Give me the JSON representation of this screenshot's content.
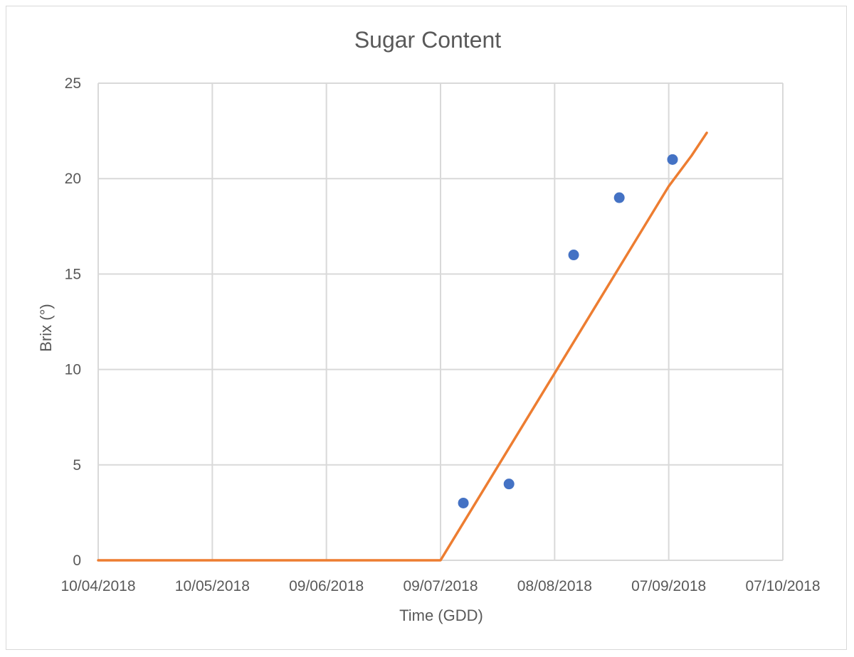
{
  "chart_data": {
    "type": "scatter",
    "title": "Sugar Content",
    "xlabel": "Time (GDD)",
    "ylabel": "Brix (°)",
    "xlim": [
      "10/04/2018",
      "07/10/2018"
    ],
    "ylim": [
      0,
      25
    ],
    "x_ticks": [
      "10/04/2018",
      "10/05/2018",
      "09/06/2018",
      "09/07/2018",
      "08/08/2018",
      "07/09/2018",
      "07/10/2018"
    ],
    "y_ticks": [
      0,
      5,
      10,
      15,
      20,
      25
    ],
    "grid": true,
    "series": [
      {
        "type": "scatter",
        "color": "#4472c4",
        "points": [
          {
            "x": "15/07/2018",
            "y": 3
          },
          {
            "x": "27/07/2018",
            "y": 4
          },
          {
            "x": "13/08/2018",
            "y": 16
          },
          {
            "x": "25/08/2018",
            "y": 19
          },
          {
            "x": "08/09/2018",
            "y": 21
          }
        ]
      },
      {
        "type": "line",
        "color": "#ed7d31",
        "points": [
          {
            "x": "10/04/2018",
            "y": 0
          },
          {
            "x": "09/07/2018",
            "y": 0
          },
          {
            "x": "07/09/2018",
            "y": 19.6
          },
          {
            "x": "13/09/2018",
            "y": 21.2
          },
          {
            "x": "17/09/2018",
            "y": 22.4
          }
        ]
      }
    ]
  }
}
